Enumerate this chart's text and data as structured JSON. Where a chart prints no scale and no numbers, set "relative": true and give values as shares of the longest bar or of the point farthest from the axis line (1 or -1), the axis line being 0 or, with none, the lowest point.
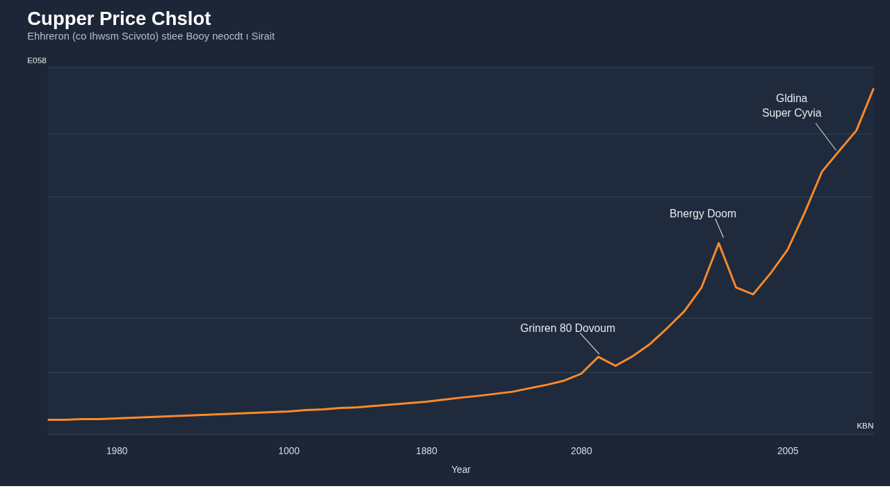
{
  "chart_data": {
    "type": "line",
    "title": "Cupper Price Chslot",
    "subtitle": "Ehhreron (co Ihwsm Scivoto) stiee Booy neocdt ı Sirait",
    "xlabel": "Year",
    "relative": true,
    "grid": "y",
    "marker": "none",
    "line_style": "solid",
    "categories": [
      null,
      null,
      null,
      null,
      "1980",
      null,
      null,
      null,
      null,
      null,
      null,
      null,
      null,
      null,
      "1000",
      null,
      null,
      null,
      null,
      null,
      null,
      null,
      "1880",
      null,
      null,
      null,
      null,
      null,
      null,
      null,
      null,
      "2080",
      null,
      null,
      null,
      null,
      null,
      null,
      null,
      null,
      null,
      null,
      null,
      "2005",
      null,
      null,
      null,
      null,
      null
    ],
    "series": [
      {
        "color": "#ff8a2a",
        "values": [
          0.041,
          0.041,
          0.043,
          0.043,
          0.045,
          0.047,
          0.049,
          0.051,
          0.053,
          0.055,
          0.057,
          0.059,
          0.061,
          0.063,
          0.065,
          0.069,
          0.071,
          0.075,
          0.077,
          0.081,
          0.085,
          0.089,
          0.093,
          0.099,
          0.105,
          0.11,
          0.116,
          0.122,
          0.132,
          0.142,
          0.154,
          0.174,
          0.223,
          0.197,
          0.225,
          0.26,
          0.306,
          0.355,
          0.424,
          0.552,
          0.424,
          0.404,
          0.464,
          0.533,
          0.641,
          0.759,
          0.819,
          0.878,
          1.0
        ]
      }
    ],
    "annotations": [
      "Grinren 80  Dovoum",
      "Bnergy Doom",
      "Gldina\nSuper Cyvia",
      "E058",
      "KBN"
    ]
  }
}
